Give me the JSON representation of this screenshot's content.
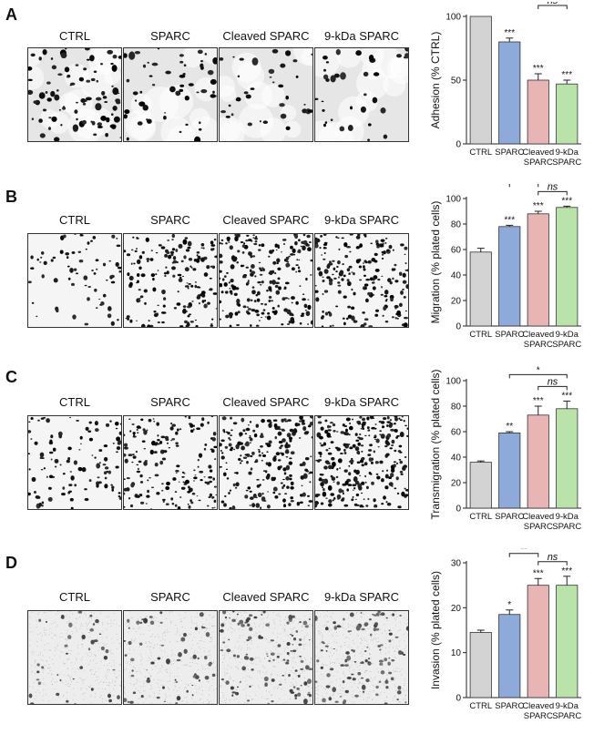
{
  "panels": [
    {
      "label": "A",
      "image_labels": [
        "CTRL",
        "SPARC",
        "Cleaved SPARC",
        "9-kDa SPARC"
      ],
      "chart_data": {
        "type": "bar",
        "categories": [
          [
            "CTRL"
          ],
          [
            "SPARC"
          ],
          [
            "Cleaved",
            "SPARC"
          ],
          [
            "9-kDa",
            "SPARC"
          ]
        ],
        "values": [
          100,
          80,
          50,
          47
        ],
        "errors": [
          0,
          3,
          5,
          3
        ],
        "ylabel": "Adhesion (% CTRL)",
        "ylim": [
          0,
          100
        ],
        "yticks": [
          0,
          50,
          100
        ],
        "colors": [
          "#d3d3d3",
          "#8eaadb",
          "#e8b4b4",
          "#b9e3a8"
        ],
        "bar_annotations": [
          "",
          "***",
          "***",
          "***"
        ],
        "brackets": [
          {
            "from": 1,
            "to": 2,
            "text": "***",
            "italic": false
          },
          {
            "from": 1,
            "to": 3,
            "text": "***",
            "italic": false
          },
          {
            "from": 2,
            "to": 3,
            "text": "ns",
            "italic": true
          }
        ]
      }
    },
    {
      "label": "B",
      "image_labels": [
        "CTRL",
        "SPARC",
        "Cleaved SPARC",
        "9-kDa SPARC"
      ],
      "chart_data": {
        "type": "bar",
        "categories": [
          [
            "CTRL"
          ],
          [
            "SPARC"
          ],
          [
            "Cleaved",
            "SPARC"
          ],
          [
            "9-kDa",
            "SPARC"
          ]
        ],
        "values": [
          58,
          78,
          88,
          93
        ],
        "errors": [
          3,
          1,
          2,
          1
        ],
        "ylabel": "Migration (% plated cells)",
        "ylim": [
          0,
          100
        ],
        "yticks": [
          0,
          20,
          40,
          60,
          80,
          100
        ],
        "colors": [
          "#d3d3d3",
          "#8eaadb",
          "#e8b4b4",
          "#b9e3a8"
        ],
        "bar_annotations": [
          "",
          "***",
          "***",
          "***"
        ],
        "brackets": [
          {
            "from": 1,
            "to": 3,
            "text": "***",
            "italic": false
          },
          {
            "from": 1,
            "to": 2,
            "text": "***",
            "italic": false
          },
          {
            "from": 2,
            "to": 3,
            "text": "ns",
            "italic": true
          }
        ]
      }
    },
    {
      "label": "C",
      "image_labels": [
        "CTRL",
        "SPARC",
        "Cleaved SPARC",
        "9-kDa SPARC"
      ],
      "chart_data": {
        "type": "bar",
        "categories": [
          [
            "CTRL"
          ],
          [
            "SPARC"
          ],
          [
            "Cleaved",
            "SPARC"
          ],
          [
            "9-kDa",
            "SPARC"
          ]
        ],
        "values": [
          36,
          59,
          73,
          78
        ],
        "errors": [
          1,
          1,
          7,
          6
        ],
        "ylabel": "Transmigration (% plated cells)",
        "ylim": [
          0,
          100
        ],
        "yticks": [
          0,
          20,
          40,
          60,
          80,
          100
        ],
        "colors": [
          "#d3d3d3",
          "#8eaadb",
          "#e8b4b4",
          "#b9e3a8"
        ],
        "bar_annotations": [
          "",
          "**",
          "***",
          "***"
        ],
        "brackets": [
          {
            "from": 1,
            "to": 3,
            "text": "*",
            "italic": false
          },
          {
            "from": 2,
            "to": 3,
            "text": "ns",
            "italic": true
          }
        ]
      }
    },
    {
      "label": "D",
      "image_labels": [
        "CTRL",
        "SPARC",
        "Cleaved SPARC",
        "9-kDa SPARC"
      ],
      "chart_data": {
        "type": "bar",
        "categories": [
          [
            "CTRL"
          ],
          [
            "SPARC"
          ],
          [
            "Cleaved",
            "SPARC"
          ],
          [
            "9-kDa",
            "SPARC"
          ]
        ],
        "values": [
          14.5,
          18.5,
          25,
          25
        ],
        "errors": [
          0.5,
          1,
          1.5,
          2
        ],
        "ylabel": "Invasion (% plated cells)",
        "ylim": [
          0,
          30
        ],
        "yticks": [
          0,
          10,
          20,
          30
        ],
        "colors": [
          "#d3d3d3",
          "#8eaadb",
          "#e8b4b4",
          "#b9e3a8"
        ],
        "bar_annotations": [
          "",
          "*",
          "***",
          "***"
        ],
        "brackets": [
          {
            "from": 1,
            "to": 3,
            "text": "**",
            "italic": false
          },
          {
            "from": 1,
            "to": 2,
            "text": "**",
            "italic": false
          },
          {
            "from": 2,
            "to": 3,
            "text": "ns",
            "italic": true
          }
        ]
      }
    }
  ]
}
